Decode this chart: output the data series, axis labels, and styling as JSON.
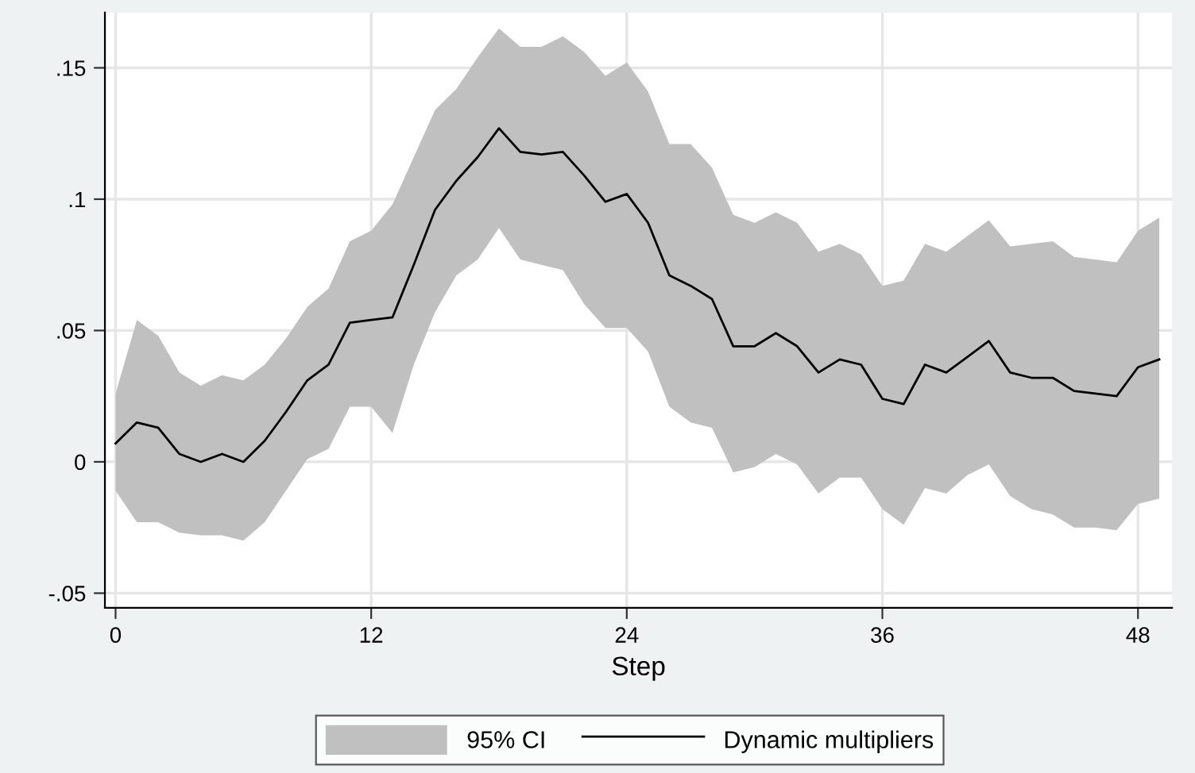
{
  "chart_data": {
    "type": "line",
    "xlabel": "Step",
    "x": [
      0,
      1,
      2,
      3,
      4,
      5,
      6,
      7,
      8,
      9,
      10,
      11,
      12,
      13,
      14,
      15,
      16,
      17,
      18,
      19,
      20,
      21,
      22,
      23,
      24,
      25,
      26,
      27,
      28,
      29,
      30,
      31,
      32,
      33,
      34,
      35,
      36,
      37,
      38,
      39,
      40,
      41,
      42,
      43,
      44,
      45,
      46,
      47,
      48,
      49
    ],
    "series": [
      {
        "name": "Dynamic multipliers",
        "color": "#000000",
        "values": [
          0.007,
          0.015,
          0.013,
          0.003,
          0.0,
          0.003,
          0.0,
          0.008,
          0.019,
          0.031,
          0.037,
          0.053,
          0.054,
          0.055,
          0.075,
          0.096,
          0.107,
          0.116,
          0.127,
          0.118,
          0.117,
          0.118,
          0.109,
          0.099,
          0.102,
          0.091,
          0.071,
          0.067,
          0.062,
          0.044,
          0.044,
          0.049,
          0.044,
          0.034,
          0.039,
          0.037,
          0.024,
          0.022,
          0.037,
          0.034,
          0.04,
          0.046,
          0.034,
          0.032,
          0.032,
          0.027,
          0.026,
          0.025,
          0.036,
          0.039
        ],
        "lower": [
          -0.011,
          -0.023,
          -0.023,
          -0.027,
          -0.028,
          -0.028,
          -0.03,
          -0.023,
          -0.011,
          0.001,
          0.005,
          0.021,
          0.021,
          0.011,
          0.037,
          0.057,
          0.071,
          0.077,
          0.089,
          0.077,
          0.075,
          0.073,
          0.06,
          0.051,
          0.051,
          0.042,
          0.021,
          0.015,
          0.013,
          -0.004,
          -0.002,
          0.003,
          -0.001,
          -0.012,
          -0.006,
          -0.006,
          -0.018,
          -0.024,
          -0.01,
          -0.012,
          -0.005,
          -0.001,
          -0.013,
          -0.018,
          -0.02,
          -0.025,
          -0.025,
          -0.026,
          -0.016,
          -0.014
        ],
        "upper": [
          0.026,
          0.054,
          0.048,
          0.034,
          0.029,
          0.033,
          0.031,
          0.037,
          0.047,
          0.059,
          0.066,
          0.084,
          0.088,
          0.098,
          0.116,
          0.134,
          0.142,
          0.154,
          0.165,
          0.158,
          0.158,
          0.162,
          0.156,
          0.147,
          0.152,
          0.141,
          0.121,
          0.121,
          0.112,
          0.094,
          0.091,
          0.095,
          0.091,
          0.08,
          0.083,
          0.079,
          0.067,
          0.069,
          0.083,
          0.08,
          0.086,
          0.092,
          0.082,
          0.083,
          0.084,
          0.078,
          0.077,
          0.076,
          0.088,
          0.093
        ]
      }
    ],
    "annotations": [
      "95% CI"
    ],
    "xlim": [
      -0.5,
      49.6
    ],
    "ylim": [
      -0.0556,
      0.171
    ],
    "xticks": [
      0,
      12,
      24,
      36,
      48
    ],
    "yticks": [
      {
        "value": -0.05,
        "label": "-.05"
      },
      0,
      {
        "value": 0.05,
        "label": ".05"
      },
      {
        "value": 0.1,
        "label": ".1"
      },
      {
        "value": 0.15,
        "label": ".15"
      }
    ],
    "grid": true,
    "legend": "bottom",
    "marker": "none",
    "line_style": "solid"
  }
}
